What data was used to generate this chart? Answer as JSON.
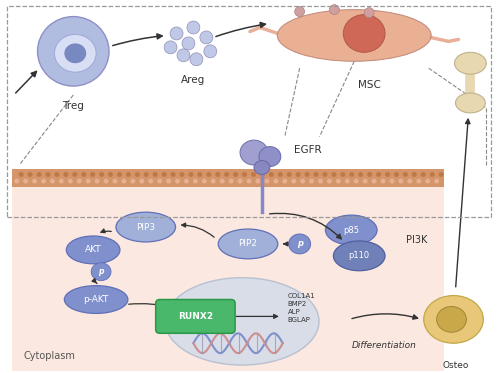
{
  "bg_color": "#ffffff",
  "cytoplasm_bg": "#fbe8e0",
  "membrane_color": "#d4956a",
  "membrane_dot_color": "#e8b090",
  "labels": {
    "Treg": "Treg",
    "Areg": "Areg",
    "MSC": "MSC",
    "EGFR": "EGFR",
    "PIP3": "PIP3",
    "PIP2": "PIP2",
    "p85": "p85",
    "p110": "p110",
    "PI3K": "PI3K",
    "AKT": "AKT",
    "pAKT": "p-AKT",
    "RUNX2": "RUNX2",
    "genes": "COL1A1\nBMP2\nALP\nBGLAP",
    "Differentiation": "Differentiation",
    "Cytoplasm": "Cytoplasm",
    "Osteo": "Osteo"
  },
  "colors": {
    "blue_oval": "#8090cc",
    "blue_oval_dark": "#6070b8",
    "blue_oval_light": "#a0b0d8",
    "green_box": "#4ab86a",
    "green_box_dark": "#2a9848",
    "treg_outer": "#b0bce0",
    "treg_inner": "#d8dff5",
    "treg_nucleus": "#7888c0",
    "areg_dot": "#c0c8e8",
    "msc_body": "#e8a888",
    "msc_nucleus": "#d06858",
    "msc_tail": "#e8b098",
    "egfr_top": "#9090c0",
    "egfr_body": "#8080b8",
    "osteoblast": "#e8c878",
    "osteoblast_nuc": "#c8a848",
    "bone_color": "#e8d8b0",
    "arrow": "#333333",
    "dashed": "#888888",
    "p_text": "#333333",
    "nucleus_fill": "#d8dde8",
    "nucleus_edge": "#b8c0d0",
    "dna_strand1": "#8090cc",
    "dna_strand2": "#cc9090"
  },
  "layout": {
    "fig_w": 5.0,
    "fig_h": 3.73,
    "dpi": 100,
    "xlim": [
      0,
      5.0
    ],
    "ylim": [
      0,
      3.73
    ]
  }
}
